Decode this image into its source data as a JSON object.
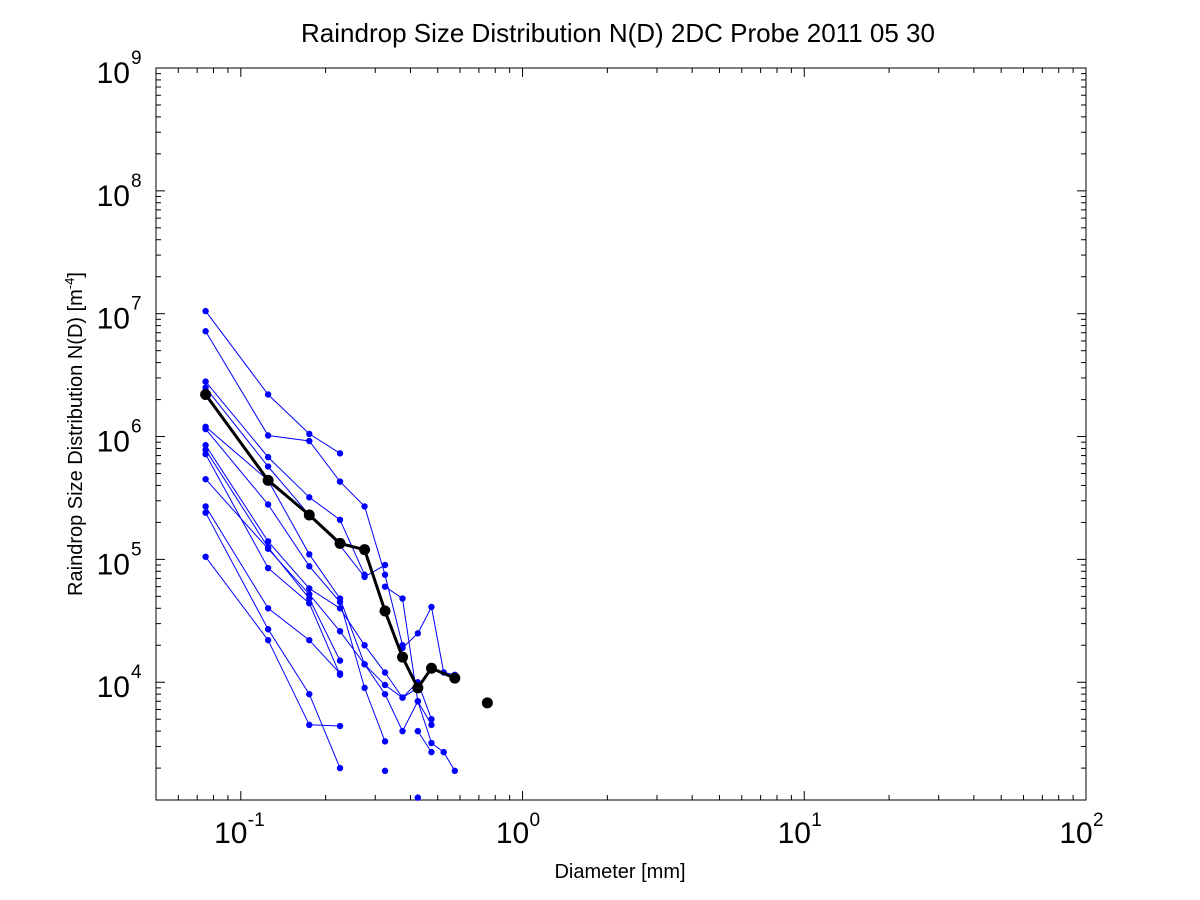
{
  "chart_data": {
    "type": "line",
    "title": "Raindrop Size Distribution N(D) 2DC Probe 2011 05 30",
    "xlabel": "Diameter [mm]",
    "ylabel_text": "Raindrop Size Distribution N(D) [m",
    "ylabel_sup": "-4",
    "ylabel_end": "]",
    "xscale": "log",
    "yscale": "log",
    "xlim": [
      0.05,
      100
    ],
    "ylim": [
      1100,
      1000000000
    ],
    "grid": false,
    "x_ticks": [
      {
        "base": "10",
        "exp": "-1",
        "value": 0.1
      },
      {
        "base": "10",
        "exp": "0",
        "value": 1
      },
      {
        "base": "10",
        "exp": "1",
        "value": 10
      },
      {
        "base": "10",
        "exp": "2",
        "value": 100
      }
    ],
    "y_ticks": [
      {
        "base": "10",
        "exp": "4",
        "value": 10000
      },
      {
        "base": "10",
        "exp": "5",
        "value": 100000
      },
      {
        "base": "10",
        "exp": "6",
        "value": 1000000
      },
      {
        "base": "10",
        "exp": "7",
        "value": 10000000
      },
      {
        "base": "10",
        "exp": "8",
        "value": 100000000
      },
      {
        "base": "10",
        "exp": "9",
        "value": 1000000000
      }
    ],
    "colors": {
      "samples": "#0000ff",
      "mean": "#000000"
    },
    "series": [
      {
        "x": [
          0.075,
          0.125,
          0.175,
          0.225
        ],
        "y": [
          10500000,
          2200000,
          1050000,
          730000
        ]
      },
      {
        "x": [
          0.075,
          0.125,
          0.175,
          0.225,
          0.275,
          0.325,
          0.375
        ],
        "y": [
          7200000,
          1020000,
          920000,
          430000,
          270000,
          75000,
          20000
        ]
      },
      {
        "x": [
          0.075,
          0.125,
          0.175,
          0.225,
          0.275
        ],
        "y": [
          2800000,
          680000,
          320000,
          210000,
          75000
        ]
      },
      {
        "x": [
          0.075,
          0.125,
          0.175,
          0.225,
          0.275,
          0.325
        ],
        "y": [
          2500000,
          570000,
          230000,
          130000,
          72000,
          90000
        ]
      },
      {
        "x": [
          0.075,
          0.125,
          0.175,
          0.225,
          0.275,
          0.325,
          0.375,
          0.425,
          0.475
        ],
        "y": [
          1200000,
          440000,
          110000,
          48000,
          14000,
          8000,
          4000,
          7000,
          4500
        ]
      },
      {
        "x": [
          0.075,
          0.125,
          0.175,
          0.225,
          0.275,
          0.325
        ],
        "y": [
          1150000,
          280000,
          88000,
          45000,
          9000,
          3300
        ]
      },
      {
        "x": [
          0.075,
          0.125,
          0.175,
          0.225,
          0.275,
          0.325,
          0.375,
          0.425,
          0.475
        ],
        "y": [
          850000,
          140000,
          58000,
          40000,
          20000,
          12000,
          7500,
          10000,
          5000
        ]
      },
      {
        "x": [
          0.075,
          0.125,
          0.175,
          0.225
        ],
        "y": [
          780000,
          125000,
          48000,
          15000
        ]
      },
      {
        "x": [
          0.075,
          0.125,
          0.175,
          0.225
        ],
        "y": [
          720000,
          85000,
          44000,
          11500
        ]
      },
      {
        "x": [
          0.075,
          0.125,
          0.175,
          0.225,
          0.275,
          0.325,
          0.375,
          0.425
        ],
        "y": [
          450000,
          122000,
          52000,
          26000,
          14000,
          9500,
          7500,
          9000
        ]
      },
      {
        "x": [
          0.075,
          0.125,
          0.175,
          0.225
        ],
        "y": [
          270000,
          40000,
          22000,
          11800
        ]
      },
      {
        "x": [
          0.075,
          0.125,
          0.175,
          0.225
        ],
        "y": [
          240000,
          27000,
          8000,
          2000
        ]
      },
      {
        "x": [
          0.075,
          0.125,
          0.175,
          0.225
        ],
        "y": [
          105000,
          22000,
          4500,
          4400
        ]
      },
      {
        "x": [
          0.325,
          0.375,
          0.425,
          0.475,
          0.525,
          0.575
        ],
        "y": [
          60000,
          48000,
          7000,
          3200,
          2700,
          1900
        ]
      },
      {
        "x": [
          0.375,
          0.425,
          0.475,
          0.525,
          0.575
        ],
        "y": [
          19000,
          25000,
          41000,
          12000,
          11500
        ]
      },
      {
        "x": [
          0.425,
          0.475
        ],
        "y": [
          4000,
          2700
        ]
      },
      {
        "x": [
          0.325
        ],
        "y": [
          1900
        ]
      },
      {
        "x": [
          0.425
        ],
        "y": [
          1150
        ]
      }
    ],
    "mean": {
      "x": [
        0.075,
        0.125,
        0.175,
        0.225,
        0.275,
        0.325,
        0.375,
        0.425,
        0.475,
        0.575
      ],
      "y": [
        2200000,
        440000,
        230000,
        135000,
        120000,
        38000,
        16000,
        9000,
        13000,
        10800
      ]
    },
    "mean_extra_point": {
      "x": 0.75,
      "y": 6800
    }
  }
}
